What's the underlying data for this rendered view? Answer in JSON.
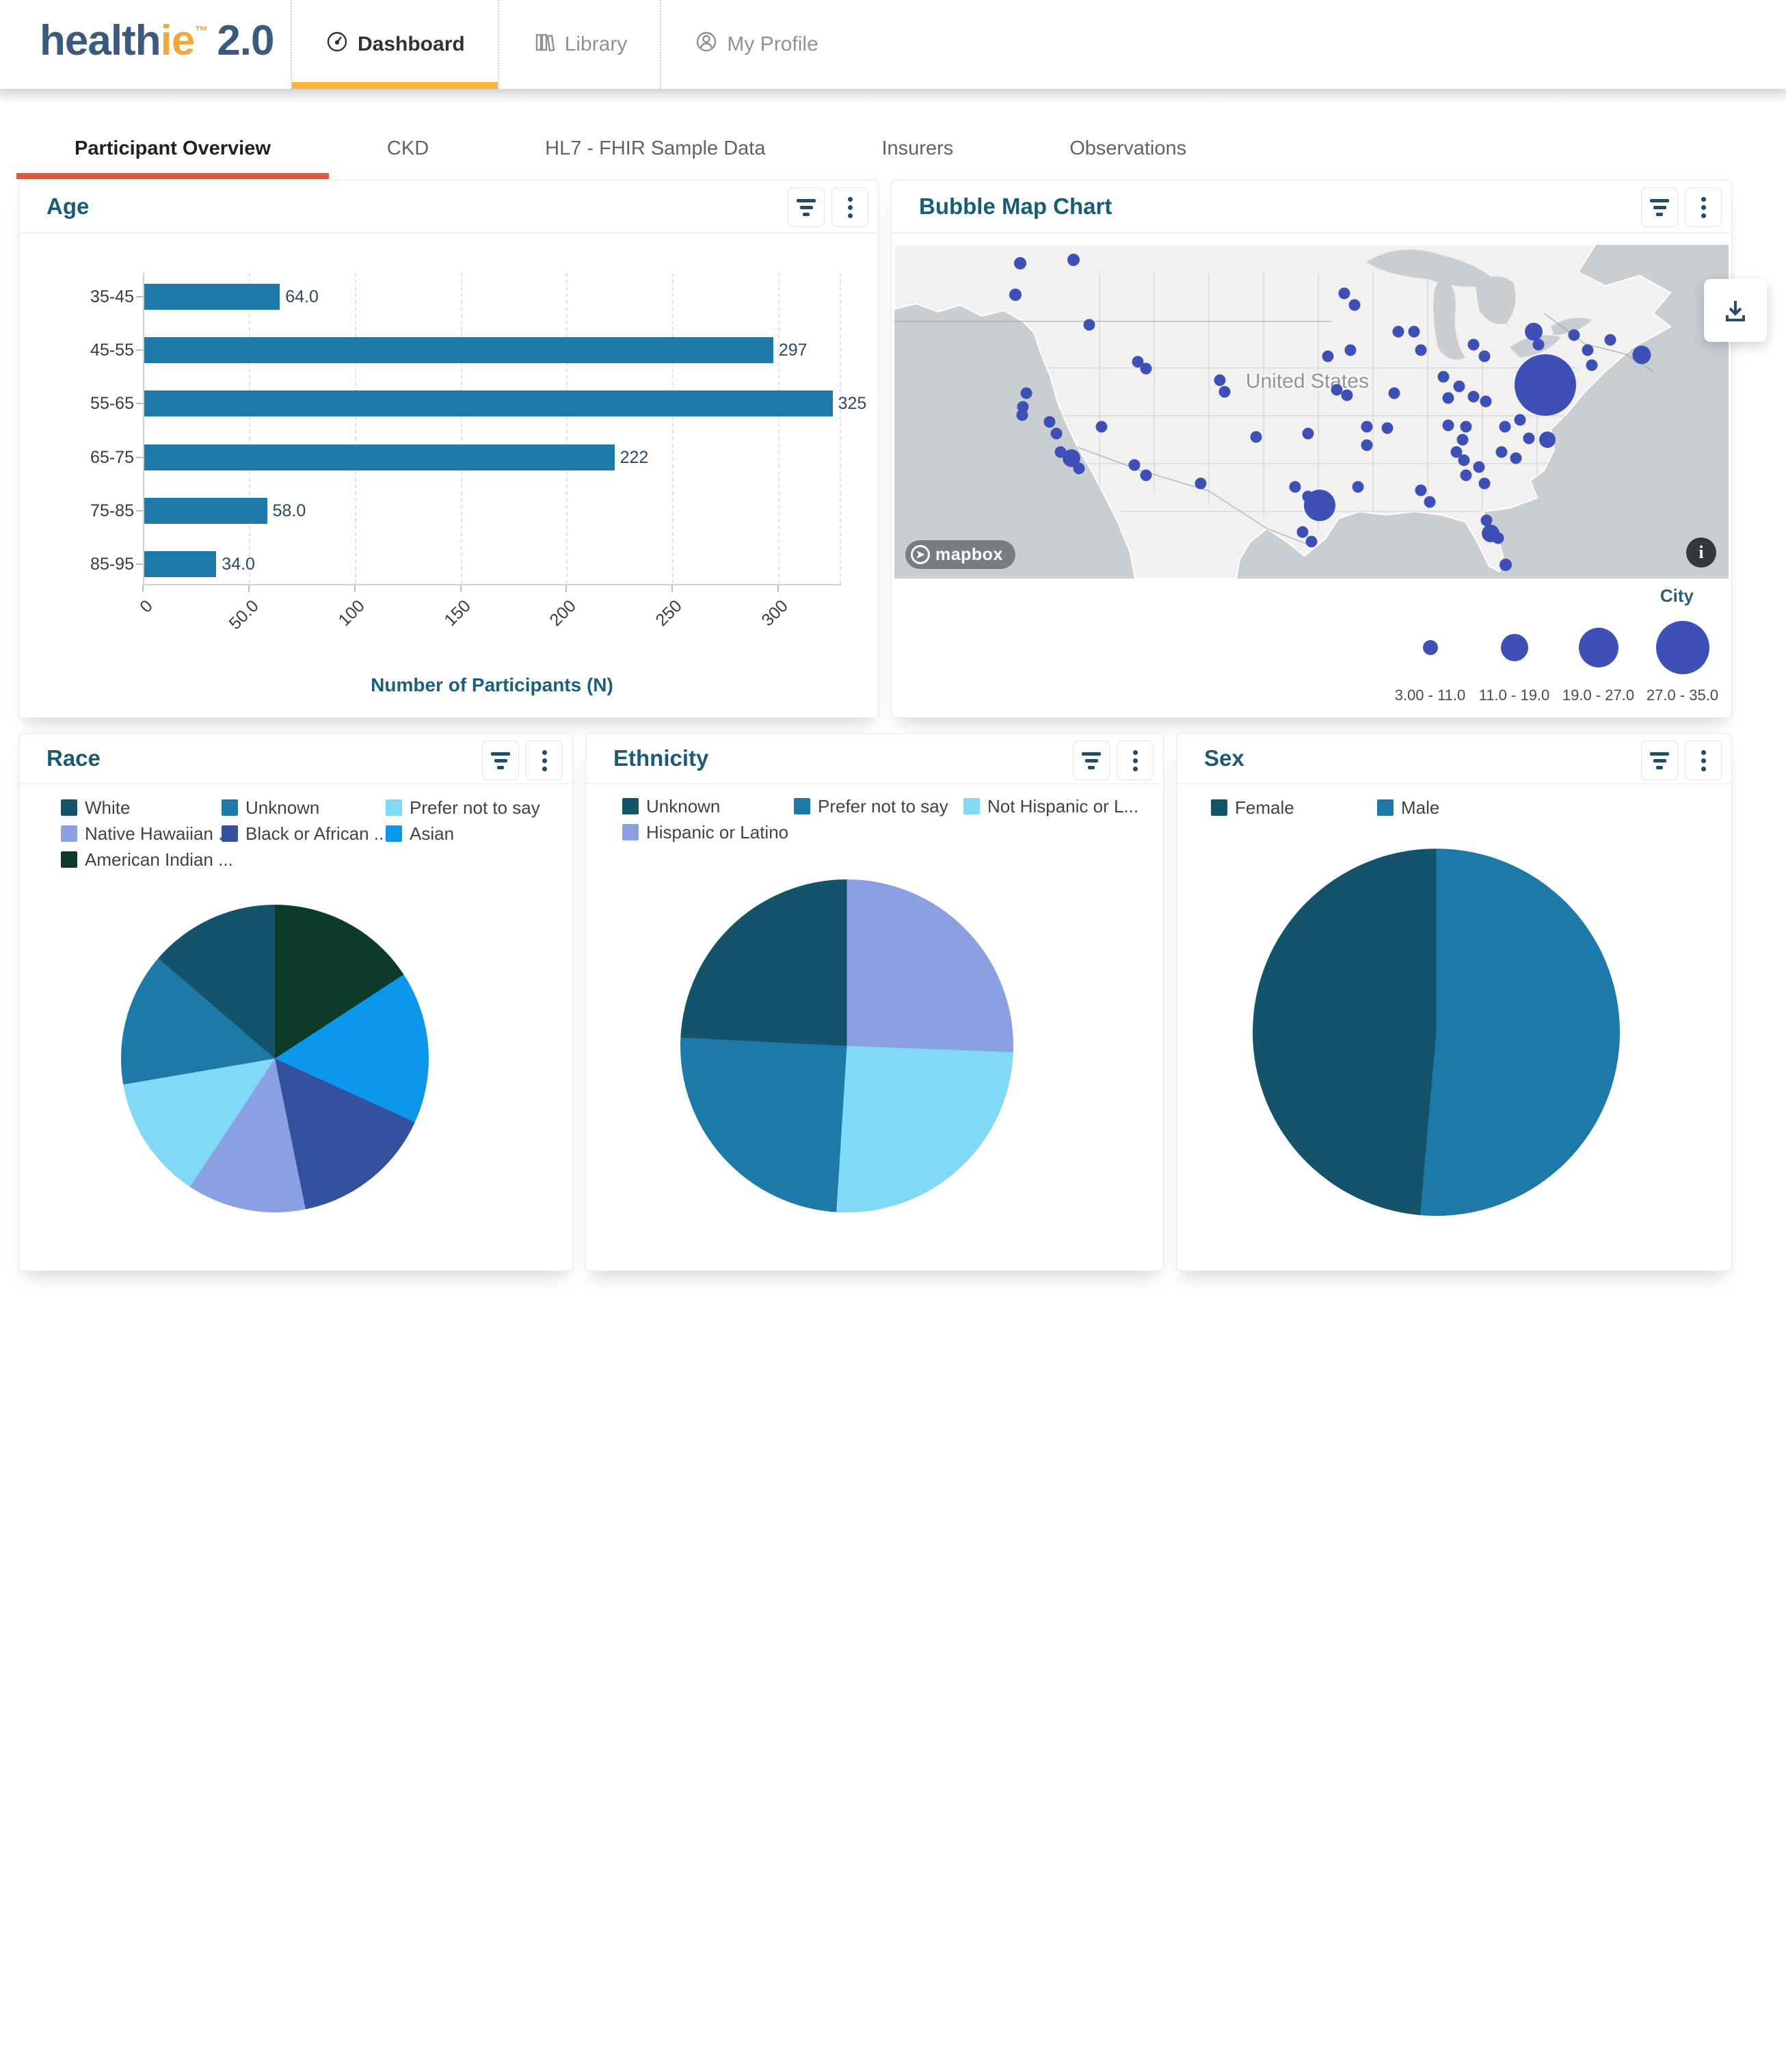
{
  "brand": {
    "health": "health",
    "ie": "ie",
    "tm": "™",
    "version": "2.0"
  },
  "nav": {
    "items": [
      {
        "label": "Dashboard",
        "icon": "gauge-icon",
        "active": true
      },
      {
        "label": "Library",
        "icon": "library-icon",
        "active": false
      },
      {
        "label": "My Profile",
        "icon": "profile-icon",
        "active": false
      }
    ]
  },
  "tabs": [
    {
      "label": "Participant Overview",
      "active": true
    },
    {
      "label": "CKD",
      "active": false
    },
    {
      "label": "HL7 - FHIR Sample Data",
      "active": false
    },
    {
      "label": "Insurers",
      "active": false
    },
    {
      "label": "Observations",
      "active": false
    }
  ],
  "colors": {
    "accent_amber": "#f9b43a",
    "accent_vermilion": "#e2573d",
    "logo_navy": "#3c5a7d",
    "logo_amber": "#f0a93c",
    "bar_blue": "#1c79a8",
    "bubble_indigo": "#3e4fb6",
    "title_teal": "#195c74",
    "pie_dark_teal": "#15536a",
    "pie_medium_blue": "#1c79a8",
    "pie_light_sky": "#82d9f7",
    "pie_periwinkle": "#8ba0e2",
    "pie_indigo": "#33519e",
    "pie_azure": "#0b97ea",
    "pie_dark_green": "#0c3b2c"
  },
  "cards": {
    "age": {
      "title": "Age",
      "xlabel": "Number of Participants (N)"
    },
    "bubble_map": {
      "title": "Bubble Map Chart",
      "map_label": "United States",
      "attribution": "mapbox"
    },
    "race": {
      "title": "Race"
    },
    "ethnicity": {
      "title": "Ethnicity"
    },
    "sex": {
      "title": "Sex"
    }
  },
  "chart_data": [
    {
      "id": "age",
      "type": "bar",
      "orientation": "horizontal",
      "title": "Age",
      "categories": [
        "35-45",
        "45-55",
        "55-65",
        "65-75",
        "75-85",
        "85-95"
      ],
      "values": [
        64.0,
        297,
        325,
        222,
        58.0,
        34.0
      ],
      "value_labels": [
        "64.0",
        "297",
        "325",
        "222",
        "58.0",
        "34.0"
      ],
      "xlabel": "Number of Participants (N)",
      "ylabel": "",
      "xticks": [
        0,
        50,
        100,
        150,
        200,
        250,
        300
      ],
      "xtick_labels": [
        "0",
        "50.0",
        "100",
        "150",
        "200",
        "250",
        "300"
      ],
      "xlim": [
        0,
        329
      ],
      "grid": "dashed-vertical",
      "bar_color": "#1c79a8"
    },
    {
      "id": "bubble_map",
      "type": "bubble-map",
      "title": "Bubble Map Chart",
      "region_label": "United States",
      "size_legend_title": "City",
      "size_legend": [
        {
          "range": "3.00 - 11.0",
          "diameter": 22
        },
        {
          "range": "11.0 - 19.0",
          "diameter": 40
        },
        {
          "range": "19.0 - 27.0",
          "diameter": 58
        },
        {
          "range": "27.0 - 35.0",
          "diameter": 78
        }
      ],
      "bubble_color": "#3e4fb6",
      "bubbles": [
        [
          15.1,
          5.5,
          18
        ],
        [
          21.5,
          4.5,
          18
        ],
        [
          14.5,
          15,
          18
        ],
        [
          23.4,
          24,
          17
        ],
        [
          53.9,
          14.5,
          17
        ],
        [
          55.2,
          18,
          17
        ],
        [
          60.4,
          26,
          17
        ],
        [
          62.3,
          26,
          17
        ],
        [
          63.1,
          31.5,
          17
        ],
        [
          69.4,
          30,
          17
        ],
        [
          70.7,
          33.5,
          17
        ],
        [
          76.6,
          26,
          26
        ],
        [
          77.2,
          30,
          17
        ],
        [
          81.5,
          27,
          17
        ],
        [
          83.1,
          31.5,
          17
        ],
        [
          85.8,
          28.5,
          17
        ],
        [
          89.6,
          33,
          27
        ],
        [
          83.6,
          36,
          17
        ],
        [
          52.0,
          33.5,
          17
        ],
        [
          54.7,
          31.5,
          17
        ],
        [
          29.2,
          35,
          17
        ],
        [
          30.2,
          37,
          17
        ],
        [
          39.0,
          40.5,
          17
        ],
        [
          39.6,
          44,
          17
        ],
        [
          53.0,
          43.5,
          17
        ],
        [
          54.3,
          45,
          17
        ],
        [
          59.9,
          44.5,
          17
        ],
        [
          65.8,
          39.5,
          17
        ],
        [
          67.7,
          42.5,
          17
        ],
        [
          66.4,
          46,
          17
        ],
        [
          69.4,
          45.5,
          17
        ],
        [
          78.0,
          42.0,
          90
        ],
        [
          70.9,
          47,
          17
        ],
        [
          15.8,
          44.5,
          17
        ],
        [
          15.4,
          48.5,
          17
        ],
        [
          15.3,
          51,
          17
        ],
        [
          18.6,
          53,
          17
        ],
        [
          19.4,
          56.5,
          17
        ],
        [
          24.8,
          54.5,
          17
        ],
        [
          59.1,
          55,
          17
        ],
        [
          43.4,
          57.5,
          17
        ],
        [
          49.6,
          56.5,
          17
        ],
        [
          56.6,
          54.5,
          17
        ],
        [
          56.6,
          60,
          17
        ],
        [
          66.4,
          54,
          17
        ],
        [
          68.5,
          54.5,
          17
        ],
        [
          73.2,
          54.5,
          17
        ],
        [
          75.0,
          52.5,
          17
        ],
        [
          68.1,
          58.5,
          17
        ],
        [
          76.1,
          58,
          17
        ],
        [
          78.3,
          58.5,
          24
        ],
        [
          19.9,
          62,
          17
        ],
        [
          21.2,
          64,
          26
        ],
        [
          22.1,
          67,
          17
        ],
        [
          28.8,
          66,
          17
        ],
        [
          30.2,
          69,
          17
        ],
        [
          36.7,
          71.5,
          17
        ],
        [
          48.0,
          72.5,
          17
        ],
        [
          49.6,
          75.5,
          17
        ],
        [
          51.0,
          78,
          46
        ],
        [
          55.6,
          72.5,
          17
        ],
        [
          63.1,
          73.5,
          17
        ],
        [
          64.2,
          77,
          17
        ],
        [
          67.4,
          62,
          17
        ],
        [
          68.3,
          64.5,
          17
        ],
        [
          70.1,
          66.5,
          17
        ],
        [
          68.5,
          69,
          17
        ],
        [
          70.7,
          71.5,
          17
        ],
        [
          72.8,
          62,
          17
        ],
        [
          74.5,
          64,
          17
        ],
        [
          71.0,
          82.5,
          17
        ],
        [
          71.5,
          86.5,
          26
        ],
        [
          72.4,
          88,
          17
        ],
        [
          73.3,
          96,
          18
        ],
        [
          48.9,
          86,
          17
        ],
        [
          50.0,
          89,
          17
        ]
      ]
    },
    {
      "id": "race",
      "type": "pie",
      "title": "Race",
      "slices": [
        {
          "label": "American Indian ...",
          "value": 15.8,
          "color": "#0c3b2c"
        },
        {
          "label": "Asian",
          "value": 16.0,
          "color": "#0b97ea"
        },
        {
          "label": "Black or African ...",
          "value": 15.0,
          "color": "#33519e"
        },
        {
          "label": "Native Hawaiian ...",
          "value": 12.5,
          "color": "#8ba0e2"
        },
        {
          "label": "Prefer not to say",
          "value": 13.0,
          "color": "#82d9f7"
        },
        {
          "label": "Unknown",
          "value": 14.0,
          "color": "#1c79a8"
        },
        {
          "label": "White",
          "value": 13.7,
          "color": "#15536a"
        }
      ],
      "legend": [
        {
          "label": "White",
          "color": "#15536a"
        },
        {
          "label": "Unknown",
          "color": "#1c79a8"
        },
        {
          "label": "Prefer not to say",
          "color": "#82d9f7"
        },
        {
          "label": "Native Hawaiian ...",
          "color": "#8ba0e2"
        },
        {
          "label": "Black or African ...",
          "color": "#33519e"
        },
        {
          "label": "Asian",
          "color": "#0b97ea"
        },
        {
          "label": "American Indian ...",
          "color": "#0c3b2c"
        }
      ]
    },
    {
      "id": "ethnicity",
      "type": "pie",
      "title": "Ethnicity",
      "slices": [
        {
          "label": "Hispanic or Latino",
          "value": 25.6,
          "color": "#8ba0e2"
        },
        {
          "label": "Not Hispanic or L...",
          "value": 25.4,
          "color": "#82d9f7"
        },
        {
          "label": "Prefer not to say",
          "value": 24.8,
          "color": "#1c79a8"
        },
        {
          "label": "Unknown",
          "value": 24.2,
          "color": "#15536a"
        }
      ],
      "legend": [
        {
          "label": "Unknown",
          "color": "#15536a"
        },
        {
          "label": "Prefer not to say",
          "color": "#1c79a8"
        },
        {
          "label": "Not Hispanic or L...",
          "color": "#82d9f7"
        },
        {
          "label": "Hispanic or Latino",
          "color": "#8ba0e2"
        }
      ]
    },
    {
      "id": "sex",
      "type": "pie",
      "title": "Sex",
      "slices": [
        {
          "label": "Male",
          "value": 51.4,
          "color": "#1c79a8"
        },
        {
          "label": "Female",
          "value": 48.6,
          "color": "#15536a"
        }
      ],
      "legend": [
        {
          "label": "Female",
          "color": "#15536a"
        },
        {
          "label": "Male",
          "color": "#1c79a8"
        }
      ]
    }
  ]
}
